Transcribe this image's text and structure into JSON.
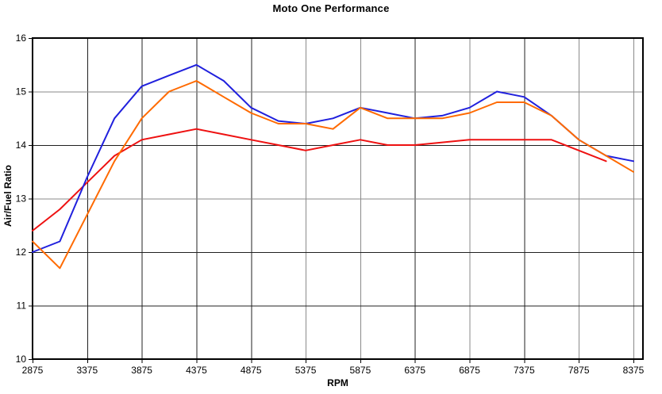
{
  "chart_data": {
    "type": "line",
    "title": "Moto One Performance",
    "xlabel": "RPM",
    "ylabel": "Air/Fuel Ratio",
    "xlim": [
      2875,
      8460
    ],
    "ylim": [
      10,
      16
    ],
    "grid": true,
    "legend": "none",
    "x_ticks": [
      2875,
      3375,
      3875,
      4375,
      4875,
      5375,
      5875,
      6375,
      6875,
      7375,
      7875,
      8375
    ],
    "y_ticks": [
      10,
      11,
      12,
      13,
      14,
      15,
      16
    ],
    "x": [
      2875,
      3125,
      3375,
      3625,
      3875,
      4125,
      4375,
      4625,
      4875,
      5125,
      5375,
      5625,
      5875,
      6125,
      6375,
      6625,
      6875,
      7125,
      7375,
      7625,
      7875,
      8125,
      8375
    ],
    "series": [
      {
        "name": "run-red",
        "color": "#ee1111",
        "values": [
          12.4,
          12.8,
          13.3,
          13.8,
          14.1,
          14.2,
          14.3,
          14.2,
          14.1,
          14.0,
          13.9,
          14.0,
          14.1,
          14.0,
          14.0,
          14.05,
          14.1,
          14.1,
          14.1,
          14.1,
          13.9,
          13.7,
          null
        ]
      },
      {
        "name": "run-blue",
        "color": "#2020dd",
        "values": [
          12.0,
          12.2,
          13.4,
          14.5,
          15.1,
          15.3,
          15.5,
          15.2,
          14.7,
          14.45,
          14.4,
          14.5,
          14.7,
          14.6,
          14.5,
          14.55,
          14.7,
          15.0,
          14.9,
          14.55,
          14.1,
          13.8,
          13.7
        ]
      },
      {
        "name": "run-orange",
        "color": "#ff6a00",
        "values": [
          12.2,
          11.7,
          12.7,
          13.7,
          14.5,
          15.0,
          15.2,
          14.9,
          14.6,
          14.4,
          14.4,
          14.3,
          14.7,
          14.5,
          14.5,
          14.5,
          14.6,
          14.8,
          14.8,
          14.55,
          14.1,
          13.8,
          13.5
        ]
      }
    ],
    "style": {
      "axis_color": "#000000",
      "grid_dark_color": "#202020",
      "grid_gray_color": "#8a8a8a",
      "v_gridline_shades": [
        "dark",
        "dark",
        "dark",
        "dark",
        "gray",
        "gray",
        "dark",
        "gray",
        "dark",
        "gray",
        "gray"
      ],
      "h_gridline_shades": [
        "dark",
        "dark",
        "gray",
        "dark",
        "gray"
      ]
    }
  }
}
